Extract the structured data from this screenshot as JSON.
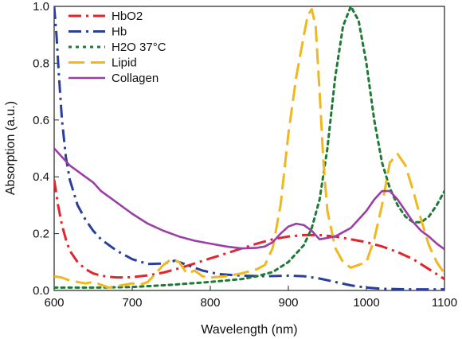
{
  "chart_data": {
    "type": "line",
    "title": "",
    "xlabel": "Wavelength (nm)",
    "ylabel": "Absorption (a.u.)",
    "xlim": [
      600,
      1100
    ],
    "ylim": [
      0,
      1.0
    ],
    "xticks": [
      "600",
      "700",
      "800",
      "900",
      "1000",
      "1100"
    ],
    "yticks": [
      "0.0",
      "0.2",
      "0.4",
      "0.6",
      "0.8",
      "1.0"
    ],
    "legend_position": "top-left",
    "grid": false,
    "series": [
      {
        "name": "HbO2",
        "color": "#e0262c",
        "style": "dash-dot",
        "x": [
          600,
          605,
          610,
          615,
          620,
          630,
          640,
          650,
          660,
          670,
          680,
          690,
          700,
          720,
          740,
          760,
          780,
          800,
          820,
          840,
          860,
          880,
          900,
          920,
          940,
          960,
          980,
          1000,
          1020,
          1040,
          1060,
          1080,
          1100
        ],
        "y": [
          0.39,
          0.3,
          0.23,
          0.18,
          0.14,
          0.1,
          0.075,
          0.06,
          0.052,
          0.048,
          0.046,
          0.046,
          0.047,
          0.053,
          0.063,
          0.078,
          0.095,
          0.113,
          0.13,
          0.148,
          0.165,
          0.18,
          0.19,
          0.195,
          0.195,
          0.19,
          0.18,
          0.17,
          0.155,
          0.135,
          0.11,
          0.075,
          0.04
        ]
      },
      {
        "name": "Hb",
        "color": "#2a3f9c",
        "style": "dash-dot",
        "x": [
          600,
          603,
          606,
          610,
          615,
          620,
          630,
          640,
          650,
          660,
          680,
          700,
          720,
          740,
          755,
          770,
          790,
          810,
          840,
          870,
          900,
          920,
          940,
          960,
          980,
          1000,
          1020,
          1050,
          1080,
          1100
        ],
        "y": [
          1.0,
          0.9,
          0.76,
          0.6,
          0.47,
          0.39,
          0.3,
          0.25,
          0.21,
          0.18,
          0.14,
          0.11,
          0.093,
          0.095,
          0.105,
          0.09,
          0.07,
          0.058,
          0.052,
          0.05,
          0.052,
          0.05,
          0.042,
          0.03,
          0.018,
          0.01,
          0.006,
          0.004,
          0.004,
          0.004
        ]
      },
      {
        "name": "H2O 37°C",
        "color": "#1e7a35",
        "style": "dotted",
        "x": [
          600,
          650,
          700,
          750,
          800,
          840,
          860,
          880,
          900,
          920,
          930,
          940,
          950,
          960,
          970,
          980,
          990,
          1000,
          1010,
          1020,
          1030,
          1040,
          1050,
          1060,
          1070,
          1080,
          1090,
          1100
        ],
        "y": [
          0.01,
          0.01,
          0.012,
          0.02,
          0.03,
          0.04,
          0.05,
          0.065,
          0.1,
          0.16,
          0.22,
          0.32,
          0.5,
          0.75,
          0.93,
          1.0,
          0.95,
          0.8,
          0.6,
          0.45,
          0.36,
          0.3,
          0.26,
          0.24,
          0.24,
          0.26,
          0.3,
          0.35
        ]
      },
      {
        "name": "Lipid",
        "color": "#f0b81e",
        "style": "dashed",
        "x": [
          600,
          610,
          620,
          630,
          640,
          650,
          660,
          670,
          680,
          690,
          700,
          710,
          720,
          730,
          740,
          750,
          760,
          770,
          780,
          790,
          800,
          820,
          840,
          860,
          870,
          880,
          890,
          900,
          910,
          920,
          925,
          930,
          935,
          940,
          945,
          950,
          960,
          970,
          980,
          990,
          1000,
          1010,
          1020,
          1030,
          1040,
          1050,
          1060,
          1070,
          1080,
          1090,
          1100
        ],
        "y": [
          0.05,
          0.045,
          0.035,
          0.03,
          0.025,
          0.03,
          0.02,
          0.01,
          0.015,
          0.02,
          0.025,
          0.02,
          0.03,
          0.06,
          0.09,
          0.11,
          0.1,
          0.06,
          0.07,
          0.05,
          0.045,
          0.05,
          0.06,
          0.075,
          0.09,
          0.15,
          0.3,
          0.55,
          0.75,
          0.9,
          0.97,
          0.99,
          0.93,
          0.7,
          0.45,
          0.28,
          0.15,
          0.1,
          0.08,
          0.09,
          0.1,
          0.18,
          0.3,
          0.45,
          0.48,
          0.44,
          0.35,
          0.25,
          0.16,
          0.1,
          0.06
        ]
      },
      {
        "name": "Collagen",
        "color": "#9b3ea6",
        "style": "solid",
        "x": [
          600,
          610,
          620,
          630,
          640,
          650,
          660,
          670,
          680,
          690,
          700,
          720,
          740,
          760,
          780,
          800,
          820,
          840,
          860,
          870,
          880,
          890,
          900,
          910,
          920,
          930,
          940,
          950,
          960,
          970,
          980,
          990,
          1000,
          1010,
          1020,
          1030,
          1040,
          1050,
          1060,
          1070,
          1080,
          1090,
          1100
        ],
        "y": [
          0.5,
          0.47,
          0.44,
          0.42,
          0.4,
          0.38,
          0.35,
          0.33,
          0.31,
          0.29,
          0.27,
          0.235,
          0.21,
          0.19,
          0.175,
          0.165,
          0.155,
          0.148,
          0.15,
          0.155,
          0.17,
          0.2,
          0.225,
          0.235,
          0.23,
          0.21,
          0.18,
          0.185,
          0.19,
          0.205,
          0.22,
          0.25,
          0.28,
          0.32,
          0.35,
          0.35,
          0.32,
          0.28,
          0.24,
          0.21,
          0.19,
          0.165,
          0.145
        ]
      }
    ]
  }
}
